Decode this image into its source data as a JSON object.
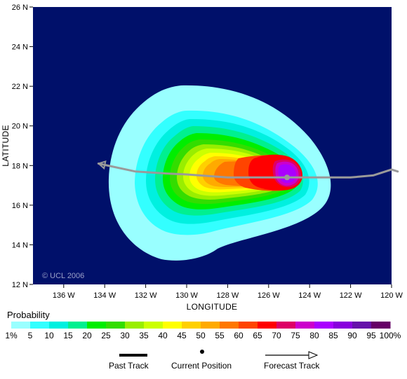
{
  "map": {
    "credit": "© UCL 2006",
    "x_axis_title": "LONGITUDE",
    "y_axis_title": "LATITUDE",
    "x_ticks": [
      "136 W",
      "134 W",
      "132 W",
      "130 W",
      "128 W",
      "126 W",
      "124 W",
      "122 W",
      "120 W"
    ],
    "y_ticks": [
      "12 N",
      "14 N",
      "16 N",
      "18 N",
      "20 N",
      "22 N",
      "24 N",
      "26 N"
    ],
    "background_color": "#00106a",
    "current_position": {
      "lon": -125.1,
      "lat": 17.4
    },
    "track": [
      {
        "lon": -119.7,
        "lat": 17.7
      },
      {
        "lon": -120.0,
        "lat": 17.8
      },
      {
        "lon": -120.9,
        "lat": 17.5
      },
      {
        "lon": -122.0,
        "lat": 17.4
      },
      {
        "lon": -124.0,
        "lat": 17.4
      },
      {
        "lon": -125.1,
        "lat": 17.4
      },
      {
        "lon": -128.0,
        "lat": 17.4
      },
      {
        "lon": -130.0,
        "lat": 17.55
      },
      {
        "lon": -131.0,
        "lat": 17.6
      },
      {
        "lon": -132.5,
        "lat": 17.7
      },
      {
        "lon": -134.3,
        "lat": 18.1
      }
    ]
  },
  "legend": {
    "title": "Probability",
    "labels": [
      "1%",
      "5",
      "10",
      "15",
      "20",
      "25",
      "30",
      "35",
      "40",
      "45",
      "50",
      "55",
      "60",
      "65",
      "70",
      "75",
      "80",
      "85",
      "90",
      "95",
      "100%"
    ],
    "colors": [
      "#99ffff",
      "#33ffff",
      "#00f0e0",
      "#00f090",
      "#00ee00",
      "#33dd00",
      "#99ee00",
      "#ccff00",
      "#ffff00",
      "#ffd000",
      "#ffaa00",
      "#ff7700",
      "#ff4400",
      "#ff0000",
      "#dd0066",
      "#cc00cc",
      "#aa00ff",
      "#8800dd",
      "#6611aa",
      "#660066"
    ]
  },
  "key": {
    "past_track": "Past Track",
    "current_position": "Current Position",
    "forecast_track": "Forecast Track"
  }
}
